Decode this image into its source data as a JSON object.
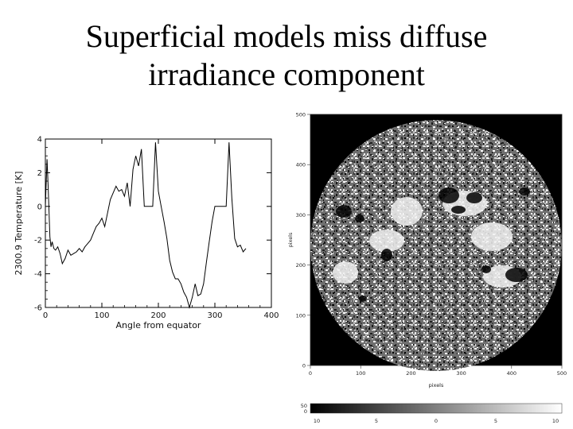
{
  "slide": {
    "title_line1": "Superficial models miss diffuse",
    "title_line2": "irradiance component"
  },
  "chart_data": [
    {
      "type": "line",
      "title": "",
      "xlabel": "Angle from equator",
      "ylabel": "2300.9 Temperature [K]",
      "xlim": [
        0,
        400
      ],
      "ylim": [
        -6,
        4
      ],
      "x_ticks": [
        "0",
        "100",
        "200",
        "300",
        "400"
      ],
      "y_ticks": [
        "4",
        "2",
        "0",
        "-2",
        "-4",
        "-6"
      ],
      "grid": false,
      "series": [
        {
          "x": [
            0,
            3,
            5,
            8,
            10,
            12,
            15,
            18,
            22,
            26,
            30,
            35,
            40,
            45,
            50,
            55,
            60,
            65,
            70,
            75,
            80,
            85,
            90,
            95,
            100,
            105,
            110,
            115,
            120,
            125,
            130,
            135,
            140,
            145,
            150,
            155,
            160,
            165,
            170,
            175,
            180,
            185,
            190,
            195,
            200,
            205,
            210,
            215,
            220,
            225,
            230,
            235,
            240,
            245,
            250,
            255,
            260,
            265,
            270,
            275,
            280,
            285,
            290,
            295,
            300,
            305,
            310,
            315,
            320,
            325,
            330,
            335,
            340,
            345,
            350,
            355
          ],
          "y": [
            0,
            2.8,
            1.2,
            -1.8,
            -2.4,
            -2.1,
            -2.5,
            -2.6,
            -2.4,
            -2.8,
            -3.4,
            -3.1,
            -2.6,
            -2.9,
            -2.8,
            -2.7,
            -2.5,
            -2.7,
            -2.4,
            -2.2,
            -2.0,
            -1.6,
            -1.2,
            -1.0,
            -0.7,
            -1.2,
            -0.4,
            0.4,
            0.8,
            1.2,
            0.9,
            1.0,
            0.6,
            1.4,
            0.0,
            2.2,
            3.0,
            2.4,
            3.4,
            0.0,
            0.0,
            0.0,
            0.0,
            3.8,
            0.9,
            0.0,
            -0.9,
            -1.9,
            -3.2,
            -3.9,
            -4.3,
            -4.3,
            -4.6,
            -5.1,
            -5.4,
            -6.0,
            -5.4,
            -4.6,
            -5.3,
            -5.2,
            -4.6,
            -3.3,
            -2.1,
            -0.9,
            0.0,
            0.0,
            0.0,
            0.0,
            0.0,
            3.8,
            0.5,
            -1.9,
            -2.4,
            -2.3,
            -2.7,
            -2.5
          ]
        }
      ]
    },
    {
      "type": "heatmap",
      "title": "",
      "xlabel": "pixels",
      "ylabel": "pixels",
      "xlim": [
        0,
        500
      ],
      "ylim": [
        0,
        500
      ],
      "x_ticks": [
        "0",
        "100",
        "200",
        "300",
        "400",
        "500"
      ],
      "y_ticks": [
        "500",
        "400",
        "300",
        "200",
        "100",
        "0"
      ],
      "colorbar_ticks": [
        "10",
        "5",
        "0",
        "5",
        "10"
      ],
      "colorbar_side_labels": [
        "50",
        "0"
      ]
    }
  ]
}
